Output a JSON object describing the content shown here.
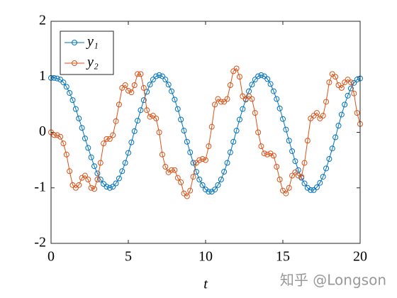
{
  "chart_data": {
    "type": "line",
    "xlabel": "t",
    "x": [
      0,
      0.2,
      0.4,
      0.6,
      0.8,
      1,
      1.2,
      1.4,
      1.6,
      1.8,
      2,
      2.2,
      2.4,
      2.6,
      2.8,
      3,
      3.2,
      3.4,
      3.6,
      3.8,
      4,
      4.2,
      4.4,
      4.6,
      4.8,
      5,
      5.2,
      5.4,
      5.6,
      5.8,
      6,
      6.2,
      6.4,
      6.6,
      6.8,
      7,
      7.2,
      7.4,
      7.6,
      7.8,
      8,
      8.2,
      8.4,
      8.6,
      8.8,
      9,
      9.2,
      9.4,
      9.6,
      9.8,
      10,
      10.2,
      10.4,
      10.6,
      10.8,
      11,
      11.2,
      11.4,
      11.6,
      11.8,
      12,
      12.2,
      12.4,
      12.6,
      12.8,
      13,
      13.2,
      13.4,
      13.6,
      13.8,
      14,
      14.2,
      14.4,
      14.6,
      14.8,
      15,
      15.2,
      15.4,
      15.6,
      15.8,
      16,
      16.2,
      16.4,
      16.6,
      16.8,
      17,
      17.2,
      17.4,
      17.6,
      17.8,
      18,
      18.2,
      18.4,
      18.6,
      18.8,
      19,
      19.2,
      19.4,
      19.6,
      19.8,
      20
    ],
    "series": [
      {
        "name": "y₁",
        "color": "#0072bd",
        "values": [
          0.98,
          0.98,
          0.97,
          0.95,
          0.9,
          0.82,
          0.71,
          0.58,
          0.42,
          0.25,
          0.08,
          -0.11,
          -0.28,
          -0.45,
          -0.61,
          -0.74,
          -0.85,
          -0.93,
          -0.98,
          -1,
          -0.98,
          -0.92,
          -0.83,
          -0.7,
          -0.55,
          -0.37,
          -0.18,
          0.02,
          0.21,
          0.4,
          0.58,
          0.73,
          0.86,
          0.95,
          1.01,
          1.03,
          1.01,
          0.95,
          0.86,
          0.74,
          0.59,
          0.42,
          0.23,
          0.03,
          -0.17,
          -0.36,
          -0.55,
          -0.71,
          -0.85,
          -0.95,
          -1.03,
          -1.07,
          -1.07,
          -1.03,
          -0.95,
          -0.85,
          -0.71,
          -0.55,
          -0.36,
          -0.17,
          0.03,
          0.23,
          0.42,
          0.59,
          0.74,
          0.86,
          0.95,
          1.01,
          1.03,
          1.01,
          0.96,
          0.87,
          0.74,
          0.6,
          0.43,
          0.24,
          0.05,
          -0.15,
          -0.34,
          -0.52,
          -0.68,
          -0.82,
          -0.92,
          -1,
          -1.04,
          -1.04,
          -0.99,
          -0.91,
          -0.8,
          -0.65,
          -0.48,
          -0.29,
          -0.09,
          0.12,
          0.32,
          0.5,
          0.66,
          0.79,
          0.89,
          0.95,
          0.97
        ]
      },
      {
        "name": "y₂",
        "color": "#d95319",
        "values": [
          0,
          -0.05,
          -0.05,
          -0.08,
          -0.2,
          -0.4,
          -0.7,
          -0.95,
          -1,
          -0.95,
          -0.82,
          -0.78,
          -0.85,
          -1,
          -1.02,
          -0.85,
          -0.55,
          -0.2,
          -0.12,
          -0.12,
          -0.05,
          0.2,
          0.5,
          0.8,
          0.85,
          0.75,
          0.72,
          0.85,
          1.05,
          1.05,
          0.8,
          0.4,
          0.28,
          0.3,
          0.25,
          0,
          -0.4,
          -0.62,
          -0.72,
          -0.68,
          -0.68,
          -0.82,
          -0.9,
          -1.1,
          -1.15,
          -1.05,
          -0.8,
          -0.55,
          -0.5,
          -0.48,
          -0.5,
          -0.25,
          0.1,
          0.5,
          0.6,
          0.55,
          0.55,
          0.6,
          0.85,
          1.1,
          1.15,
          1,
          0.65,
          0.6,
          0.65,
          0.6,
          0.35,
          0,
          -0.25,
          -0.38,
          -0.4,
          -0.38,
          -0.42,
          -0.62,
          -0.85,
          -1.05,
          -1.1,
          -1,
          -0.78,
          -0.72,
          -0.78,
          -0.8,
          -0.55,
          -0.15,
          0.25,
          0.3,
          0.35,
          0.25,
          0.3,
          0.55,
          0.9,
          1.05,
          1,
          0.85,
          0.8,
          0.9,
          0.95,
          0.9,
          0.7,
          0.35,
          0.15
        ]
      }
    ],
    "xlim": [
      0,
      20
    ],
    "xticks": [
      0,
      5,
      10,
      15,
      20
    ],
    "ylim": [
      -2,
      2
    ],
    "yticks": [
      -2,
      -1,
      0,
      1,
      2
    ],
    "legend": "top-left",
    "watermark": "知乎 @Longson"
  }
}
